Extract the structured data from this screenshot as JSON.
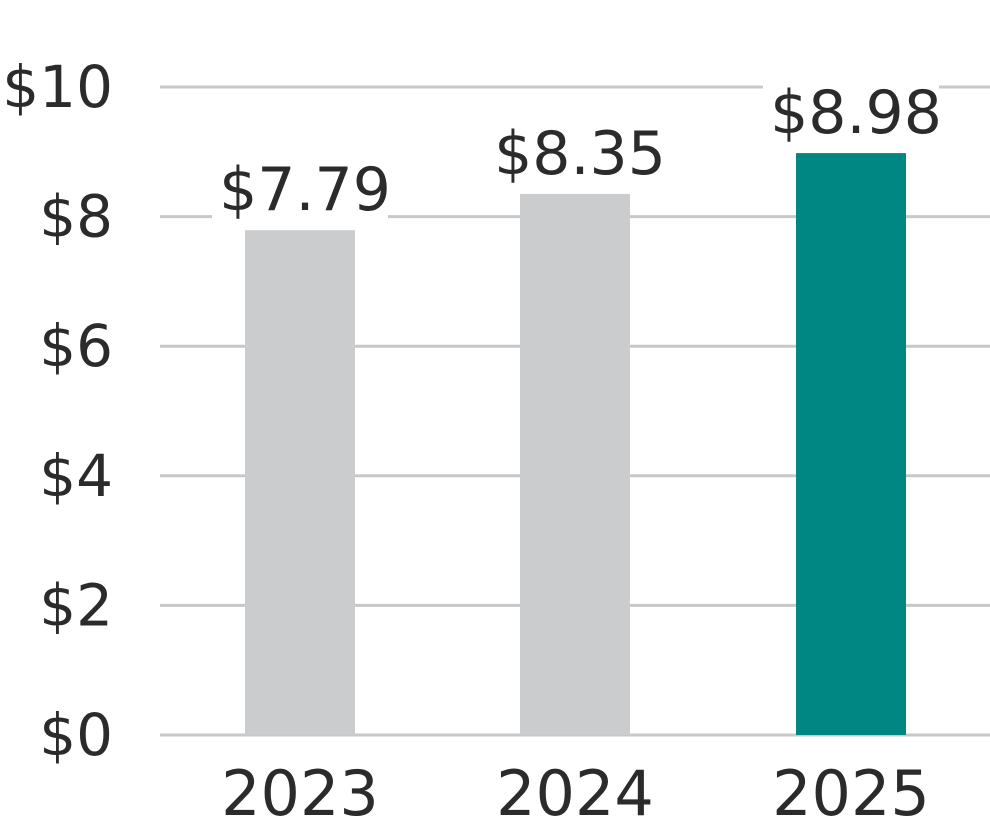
{
  "chart_data": {
    "type": "bar",
    "categories": [
      "2023",
      "2024",
      "2025"
    ],
    "values": [
      7.79,
      8.35,
      8.98
    ],
    "data_labels": [
      "$7.79",
      "$8.35",
      "$8.98"
    ],
    "title": "",
    "xlabel": "",
    "ylabel": "",
    "ylim": [
      0,
      10
    ],
    "yticks": [
      0,
      2,
      4,
      6,
      8,
      10
    ],
    "ytick_labels": [
      "$0",
      "$2",
      "$4",
      "$6",
      "$8",
      "$10"
    ],
    "grid": true,
    "legend": "none",
    "colors": {
      "default_bar": "#cbcccd",
      "highlight_bar": "#008783",
      "gridline": "#c8c8c8",
      "text": "#2b2b2b"
    },
    "highlight_index": 2
  }
}
